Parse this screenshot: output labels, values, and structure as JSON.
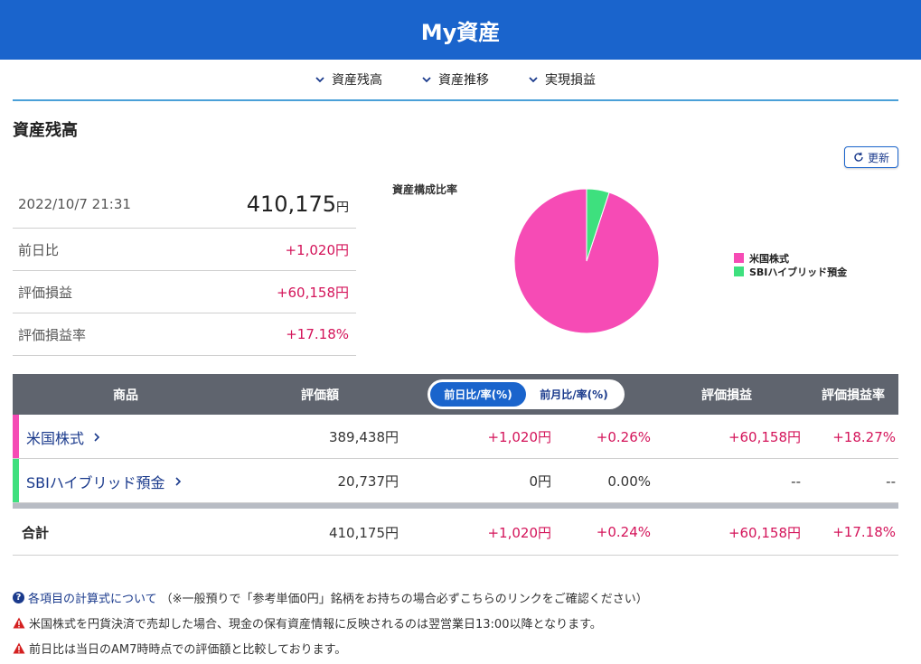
{
  "header": {
    "title": "My資産"
  },
  "nav": {
    "items": [
      {
        "label": "資産残高"
      },
      {
        "label": "資産推移"
      },
      {
        "label": "実現損益"
      }
    ]
  },
  "section": {
    "title": "資産残高",
    "refresh_label": "更新"
  },
  "summary": {
    "datetime": "2022/10/7 21:31",
    "total": "410,175",
    "unit": "円",
    "rows": [
      {
        "label": "前日比",
        "value": "+1,020円"
      },
      {
        "label": "評価損益",
        "value": "+60,158円"
      },
      {
        "label": "評価損益率",
        "value": "+17.18%"
      }
    ]
  },
  "chart_data": {
    "type": "pie",
    "title": "資産構成比率",
    "labels": [
      "米国株式",
      "SBIハイブリッド預金"
    ],
    "values": [
      389438,
      20737
    ],
    "colors": [
      "#f64bb5",
      "#3ee07e"
    ]
  },
  "table": {
    "headers": {
      "product": "商品",
      "valuation": "評価額",
      "pl": "評価損益",
      "pl_rate": "評価損益率"
    },
    "toggle": {
      "day": "前日比/率(%)",
      "month": "前月比/率(%)",
      "selected": "day"
    },
    "rows": [
      {
        "name": "米国株式",
        "color": "#f64bb5",
        "valuation": "389,438円",
        "diff": "+1,020円",
        "diff_rate": "+0.26%",
        "pl": "+60,158円",
        "pl_rate": "+18.27%"
      },
      {
        "name": "SBIハイブリッド預金",
        "color": "#3ee07e",
        "valuation": "20,737円",
        "diff": "0円",
        "diff_rate": "0.00%",
        "pl": "--",
        "pl_rate": "--"
      }
    ],
    "total": {
      "label": "合計",
      "valuation": "410,175円",
      "diff": "+1,020円",
      "diff_rate": "+0.24%",
      "pl": "+60,158円",
      "pl_rate": "+17.18%"
    }
  },
  "notes": {
    "link": "各項目の計算式について",
    "link_suffix": "（※一般預りで「参考単価0円」銘柄をお持ちの場合必ずこちらのリンクをご確認ください）",
    "warning1": "米国株式を円貨決済で売却した場合、現金の保有資産情報に反映されるのは翌営業日13:00以降となります。",
    "warning2": "前日比は当日のAM7時時点での評価額と比較しております。"
  },
  "colors": {
    "header": "#1a64cc",
    "positive": "#d4145a",
    "link": "#1a3a8c"
  }
}
